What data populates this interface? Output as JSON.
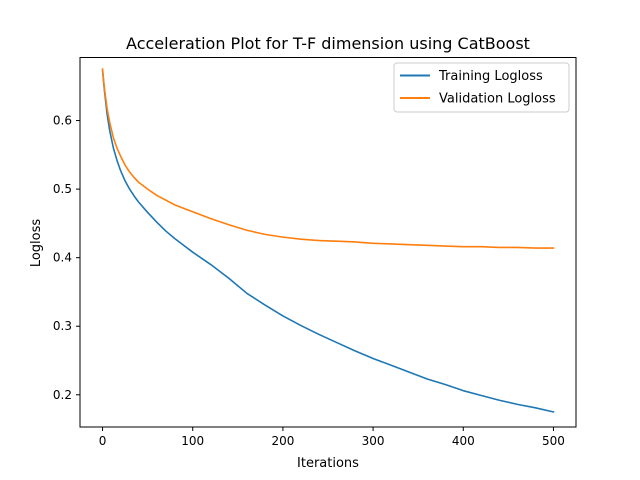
{
  "chart_data": {
    "type": "line",
    "title": "Acceleration Plot for T-F dimension using CatBoost",
    "xlabel": "Iterations",
    "ylabel": "Logloss",
    "xlim": [
      -25,
      525
    ],
    "ylim": [
      0.153,
      0.692
    ],
    "xticks": [
      0,
      100,
      200,
      300,
      400,
      500
    ],
    "yticks": [
      0.2,
      0.3,
      0.4,
      0.5,
      0.6
    ],
    "grid": false,
    "legend_position": "top-right",
    "series": [
      {
        "name": "Training Logloss",
        "color": "#1f77b4",
        "x": [
          0,
          2,
          5,
          8,
          12,
          16,
          20,
          25,
          30,
          35,
          40,
          50,
          60,
          70,
          80,
          90,
          100,
          120,
          140,
          160,
          180,
          200,
          220,
          240,
          260,
          280,
          300,
          320,
          340,
          360,
          380,
          400,
          420,
          440,
          460,
          480,
          500
        ],
        "y": [
          0.673,
          0.645,
          0.61,
          0.585,
          0.56,
          0.542,
          0.527,
          0.512,
          0.5,
          0.49,
          0.481,
          0.466,
          0.452,
          0.439,
          0.428,
          0.418,
          0.408,
          0.39,
          0.37,
          0.348,
          0.331,
          0.315,
          0.301,
          0.288,
          0.276,
          0.264,
          0.253,
          0.243,
          0.233,
          0.223,
          0.215,
          0.206,
          0.199,
          0.192,
          0.186,
          0.181,
          0.175
        ]
      },
      {
        "name": "Validation Logloss",
        "color": "#ff7f0e",
        "x": [
          0,
          2,
          5,
          8,
          12,
          16,
          20,
          25,
          30,
          35,
          40,
          50,
          60,
          70,
          80,
          90,
          100,
          120,
          140,
          160,
          180,
          200,
          220,
          240,
          260,
          280,
          300,
          320,
          340,
          360,
          380,
          400,
          420,
          440,
          460,
          480,
          500
        ],
        "y": [
          0.675,
          0.648,
          0.618,
          0.597,
          0.575,
          0.56,
          0.548,
          0.535,
          0.525,
          0.517,
          0.51,
          0.5,
          0.491,
          0.484,
          0.477,
          0.472,
          0.467,
          0.457,
          0.448,
          0.44,
          0.434,
          0.43,
          0.427,
          0.425,
          0.424,
          0.423,
          0.421,
          0.42,
          0.419,
          0.418,
          0.417,
          0.416,
          0.416,
          0.415,
          0.415,
          0.414,
          0.414
        ]
      }
    ]
  }
}
